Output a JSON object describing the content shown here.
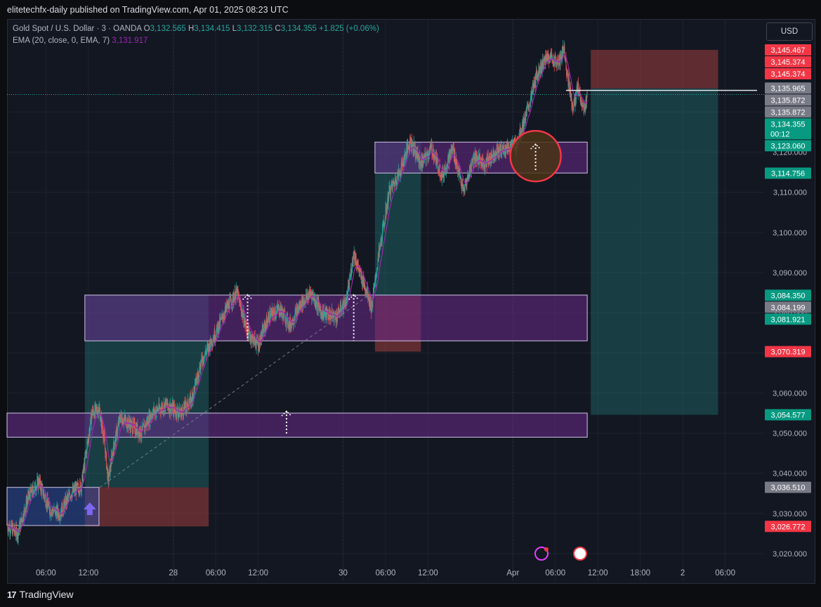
{
  "header": {
    "published": "elitetechfx-daily published on TradingView.com, Apr 01, 2025 08:23 UTC"
  },
  "legend": {
    "symbol": "Gold Spot / U.S. Dollar · 3 · OANDA",
    "o_label": "O",
    "o_value": "3,132.565",
    "h_label": "H",
    "h_value": "3,134.415",
    "l_label": "L",
    "l_value": "3,132.315",
    "c_label": "C",
    "c_value": "3,134.355",
    "change": "+1.825 (+0.06%)",
    "ema_label": "EMA (20, close, 0, EMA, 7)",
    "ema_value": "3,131.917"
  },
  "currency_button": "USD",
  "footer": {
    "brand": "TradingView"
  },
  "colors": {
    "background": "#131722",
    "bull": "#26a69a",
    "bear": "#ef5350",
    "ema": "#9c27b0",
    "zone": "#5b2c6f",
    "demand": "#1e3c72"
  },
  "chart_data": {
    "type": "candlestick",
    "title": "Gold Spot / U.S. Dollar · 3 · OANDA",
    "ylim": [
      3013,
      3153
    ],
    "y_ticks": [
      "3,020.000",
      "3,030.000",
      "3,040.000",
      "3,050.000",
      "3,060.000",
      "3,070.000",
      "3,080.000",
      "3,090.000",
      "3,100.000",
      "3,110.000",
      "3,120.000",
      "3,130.000"
    ],
    "y_tick_values": [
      3020,
      3030,
      3040,
      3050,
      3060,
      3070,
      3080,
      3090,
      3100,
      3110,
      3120,
      3130
    ],
    "x_ticks": [
      "06:00",
      "12:00",
      "28",
      "06:00",
      "12:00",
      "30",
      "06:00",
      "12:00",
      "Apr",
      "06:00",
      "12:00",
      "18:00",
      "2",
      "06:00"
    ],
    "x_tick_hours": [
      6,
      12,
      24,
      30,
      36,
      48,
      54,
      60,
      72,
      78,
      84,
      90,
      96,
      102
    ],
    "x_range_hours": [
      0.5,
      107.5
    ],
    "price_path": [
      [
        0.5,
        3027
      ],
      [
        2,
        3025
      ],
      [
        3.5,
        3034
      ],
      [
        5,
        3038
      ],
      [
        6.5,
        3031
      ],
      [
        8,
        3030
      ],
      [
        9.5,
        3035
      ],
      [
        11,
        3037
      ],
      [
        12.5,
        3055
      ],
      [
        13.5,
        3056
      ],
      [
        14.2,
        3049
      ],
      [
        14.8,
        3038
      ],
      [
        15.5,
        3046
      ],
      [
        16.5,
        3054
      ],
      [
        18,
        3052
      ],
      [
        19.5,
        3050
      ],
      [
        21,
        3055
      ],
      [
        23,
        3057
      ],
      [
        25,
        3055
      ],
      [
        26.5,
        3058
      ],
      [
        28,
        3068
      ],
      [
        30,
        3075
      ],
      [
        31.5,
        3081
      ],
      [
        33,
        3085
      ],
      [
        34.5,
        3075
      ],
      [
        36,
        3072
      ],
      [
        37.5,
        3079
      ],
      [
        39,
        3081
      ],
      [
        40.5,
        3077
      ],
      [
        42,
        3082
      ],
      [
        43.5,
        3085
      ],
      [
        45,
        3080
      ],
      [
        47,
        3079
      ],
      [
        48.5,
        3083
      ],
      [
        49.5,
        3095
      ],
      [
        50.5,
        3089
      ],
      [
        51.5,
        3085
      ],
      [
        52,
        3081
      ],
      [
        53,
        3094
      ],
      [
        54.5,
        3110
      ],
      [
        56,
        3115
      ],
      [
        57.5,
        3123
      ],
      [
        59,
        3117
      ],
      [
        60.5,
        3121
      ],
      [
        62,
        3114
      ],
      [
        63.5,
        3121
      ],
      [
        65,
        3110
      ],
      [
        66.5,
        3119
      ],
      [
        68,
        3117
      ],
      [
        69.5,
        3120
      ],
      [
        71,
        3121
      ],
      [
        72.5,
        3122
      ],
      [
        74,
        3130
      ],
      [
        75.5,
        3140
      ],
      [
        77,
        3144
      ],
      [
        78.5,
        3142
      ],
      [
        79.2,
        3146
      ],
      [
        79.8,
        3138
      ],
      [
        80.5,
        3131
      ],
      [
        81.2,
        3136
      ],
      [
        82,
        3130
      ],
      [
        82.5,
        3134.355
      ]
    ],
    "ema_value": 3131.917,
    "zones": [
      {
        "type": "demand",
        "y": [
          3027,
          3036.5
        ],
        "x": [
          0.5,
          13.5
        ]
      },
      {
        "type": "supply",
        "y": [
          3049,
          3055
        ],
        "x": [
          0.5,
          82.5
        ]
      },
      {
        "type": "supply",
        "y": [
          3073,
          3084.4
        ],
        "x": [
          11.5,
          82.5
        ]
      },
      {
        "type": "supply",
        "y": [
          3114.8,
          3122.5
        ],
        "x": [
          52.5,
          82.5
        ]
      }
    ],
    "positions": [
      {
        "entry": 3036.5,
        "target": 3084.35,
        "stop": 3026.77,
        "x": [
          11.5,
          29
        ]
      },
      {
        "entry": 3084.2,
        "target": 3122.5,
        "stop": 3070.32,
        "x": [
          52.5,
          59
        ]
      },
      {
        "entry": 3135.9,
        "target": 3054.58,
        "stop": 3145.47,
        "x": [
          83,
          101
        ]
      }
    ],
    "price_labels": [
      {
        "v": 3145.467,
        "t": "3,145.467",
        "c": "#f23645"
      },
      {
        "v": 3145.374,
        "t": "3,145.374",
        "c": "#f23645"
      },
      {
        "v": 3145.374,
        "t": "3,145.374",
        "c": "#f23645"
      },
      {
        "v": 3135.965,
        "t": "3,135.965",
        "c": "#787b86"
      },
      {
        "v": 3135.872,
        "t": "3,135.872",
        "c": "#787b86"
      },
      {
        "v": 3135.872,
        "t": "3,135.872",
        "c": "#787b86"
      },
      {
        "v": 3134.355,
        "t": "3,134.355",
        "c": "#089981",
        "sub": "00:12"
      },
      {
        "v": 3123.06,
        "t": "3,123.060",
        "c": "#089981"
      },
      {
        "v": 3114.756,
        "t": "3,114.756",
        "c": "#089981"
      },
      {
        "v": 3084.35,
        "t": "3,084.350",
        "c": "#089981"
      },
      {
        "v": 3084.199,
        "t": "3,084.199",
        "c": "#787b86"
      },
      {
        "v": 3081.921,
        "t": "3,081.921",
        "c": "#089981"
      },
      {
        "v": 3070.319,
        "t": "3,070.319",
        "c": "#f23645"
      },
      {
        "v": 3054.577,
        "t": "3,054.577",
        "c": "#089981"
      },
      {
        "v": 3036.51,
        "t": "3,036.510",
        "c": "#787b86"
      },
      {
        "v": 3026.772,
        "t": "3,026.772",
        "c": "#f23645"
      }
    ]
  }
}
